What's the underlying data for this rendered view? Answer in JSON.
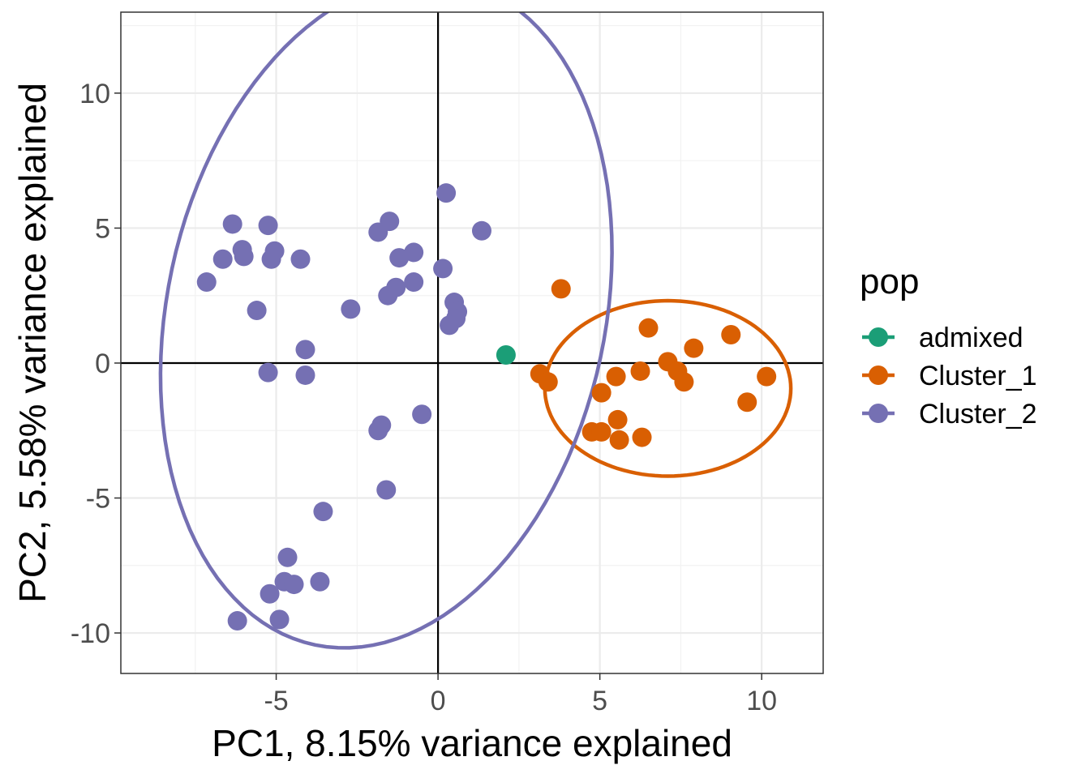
{
  "chart_data": {
    "type": "scatter",
    "title": "",
    "xlabel": "PC1, 8.15% variance explained",
    "ylabel": "PC2, 5.58% variance explained",
    "xlim": [
      -9.8,
      11.9
    ],
    "ylim": [
      -11.5,
      13.0
    ],
    "x_ticks": [
      -5,
      0,
      5,
      10
    ],
    "x_tick_labels": [
      "-5",
      "0",
      "5",
      "10"
    ],
    "y_ticks": [
      -10,
      -5,
      0,
      5,
      10
    ],
    "y_tick_labels": [
      "-10",
      "-5",
      "0",
      "5",
      "10"
    ],
    "grid": true,
    "reference_lines": {
      "x": 0,
      "y": 0
    },
    "legend": {
      "title": "pop",
      "placement": "right"
    },
    "series": [
      {
        "name": "admixed",
        "color": "#1b9e77",
        "points": [
          [
            2.1,
            0.3
          ]
        ],
        "ellipse": null
      },
      {
        "name": "Cluster_1",
        "color": "#d95f02",
        "points": [
          [
            3.8,
            2.75
          ],
          [
            6.5,
            1.3
          ],
          [
            9.05,
            1.05
          ],
          [
            7.9,
            0.55
          ],
          [
            7.1,
            0.05
          ],
          [
            7.4,
            -0.3
          ],
          [
            7.6,
            -0.7
          ],
          [
            6.25,
            -0.3
          ],
          [
            5.5,
            -0.5
          ],
          [
            10.15,
            -0.5
          ],
          [
            3.15,
            -0.4
          ],
          [
            3.4,
            -0.7
          ],
          [
            5.05,
            -1.1
          ],
          [
            9.55,
            -1.45
          ],
          [
            5.55,
            -2.1
          ],
          [
            4.75,
            -2.55
          ],
          [
            5.05,
            -2.55
          ],
          [
            5.6,
            -2.85
          ],
          [
            6.3,
            -2.75
          ]
        ],
        "ellipse": {
          "cx": 7.1,
          "cy": -0.94,
          "rx": 3.8,
          "ry": 3.25,
          "angle_deg": 0
        }
      },
      {
        "name": "Cluster_2",
        "color": "#7570b3",
        "points": [
          [
            0.25,
            6.3
          ],
          [
            1.35,
            4.9
          ],
          [
            -1.5,
            5.25
          ],
          [
            -1.85,
            4.85
          ],
          [
            -0.75,
            4.1
          ],
          [
            -1.2,
            3.9
          ],
          [
            0.15,
            3.5
          ],
          [
            -0.75,
            3.0
          ],
          [
            -1.3,
            2.8
          ],
          [
            -1.55,
            2.5
          ],
          [
            0.5,
            2.25
          ],
          [
            0.6,
            1.9
          ],
          [
            0.55,
            1.65
          ],
          [
            0.35,
            1.4
          ],
          [
            -6.35,
            5.15
          ],
          [
            -5.25,
            5.1
          ],
          [
            -6.05,
            4.2
          ],
          [
            -5.05,
            4.15
          ],
          [
            -6.0,
            3.95
          ],
          [
            -6.65,
            3.85
          ],
          [
            -5.15,
            3.85
          ],
          [
            -4.25,
            3.85
          ],
          [
            -7.15,
            3.0
          ],
          [
            -5.6,
            1.95
          ],
          [
            -2.7,
            2.0
          ],
          [
            -4.1,
            0.5
          ],
          [
            -5.25,
            -0.35
          ],
          [
            -4.1,
            -0.45
          ],
          [
            -1.75,
            -2.3
          ],
          [
            -1.85,
            -2.5
          ],
          [
            -0.5,
            -1.9
          ],
          [
            -1.6,
            -4.7
          ],
          [
            -3.55,
            -5.5
          ],
          [
            -4.65,
            -7.2
          ],
          [
            -4.75,
            -8.1
          ],
          [
            -4.45,
            -8.2
          ],
          [
            -3.65,
            -8.1
          ],
          [
            -5.2,
            -8.55
          ],
          [
            -4.9,
            -9.5
          ],
          [
            -6.2,
            -9.55
          ]
        ],
        "ellipse": {
          "cx": -1.6,
          "cy": 1.85,
          "rx": 6.8,
          "ry": 12.5,
          "angle_deg": -8.5
        }
      }
    ]
  }
}
